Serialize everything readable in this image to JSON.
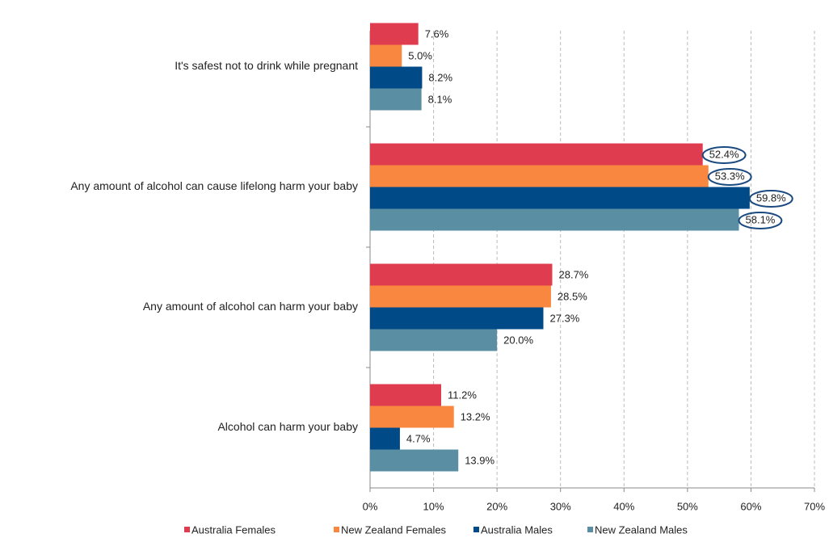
{
  "chart_data": {
    "type": "bar",
    "orientation": "horizontal",
    "categories": [
      "It's safest not to drink while pregnant",
      "Any amount of alcohol can cause lifelong harm your baby",
      "Any amount of alcohol can harm your baby",
      "Alcohol can harm your baby"
    ],
    "series": [
      {
        "name": "Australia Females",
        "color": "#e03c50",
        "values": [
          7.6,
          52.4,
          28.7,
          11.2
        ],
        "value_labels": [
          "7.6%",
          "52.4%",
          "28.7%",
          "11.2%"
        ]
      },
      {
        "name": "New Zealand Females",
        "color": "#f98740",
        "values": [
          5.0,
          53.3,
          28.5,
          13.2
        ],
        "value_labels": [
          "5.0%",
          "53.3%",
          "28.5%",
          "13.2%"
        ]
      },
      {
        "name": "Australia Males",
        "color": "#004a87",
        "values": [
          8.2,
          59.8,
          27.3,
          4.7
        ],
        "value_labels": [
          "8.2%",
          "59.8%",
          "27.3%",
          "4.7%"
        ]
      },
      {
        "name": "New Zealand Males",
        "color": "#5a8fa3",
        "values": [
          8.1,
          58.1,
          20.0,
          13.9
        ],
        "value_labels": [
          "8.1%",
          "58.1%",
          "20.0%",
          "13.9%"
        ]
      }
    ],
    "xlim": [
      0,
      70
    ],
    "xticks": [
      {
        "value": 0,
        "label": "0%"
      },
      {
        "value": 10,
        "label": "10%"
      },
      {
        "value": 20,
        "label": "20%"
      },
      {
        "value": 30,
        "label": "30%"
      },
      {
        "value": 40,
        "label": "40%"
      },
      {
        "value": 50,
        "label": "50%"
      },
      {
        "value": 60,
        "label": "60%"
      },
      {
        "value": 70,
        "label": "70%"
      }
    ],
    "grid": true,
    "legend": "bottom"
  }
}
